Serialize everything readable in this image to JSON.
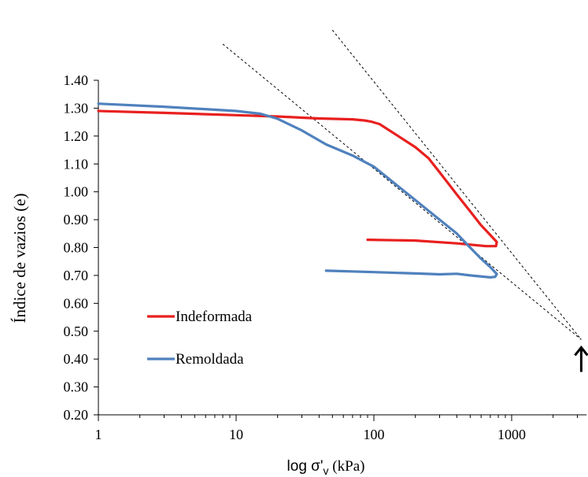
{
  "chart_data": {
    "type": "line",
    "title": "",
    "xlabel": "log σ'v (kPa)",
    "ylabel": "Índice de vazios (e)",
    "x_scale": "log",
    "xlim": [
      1,
      3500
    ],
    "ylim": [
      0.2,
      1.4
    ],
    "x_ticks": [
      1,
      10,
      100,
      1000
    ],
    "x_tick_labels": [
      "1",
      "10",
      "100",
      "1000"
    ],
    "y_ticks": [
      0.2,
      0.3,
      0.4,
      0.5,
      0.6,
      0.7,
      0.8,
      0.9,
      1.0,
      1.1,
      1.2,
      1.3,
      1.4
    ],
    "y_tick_labels": [
      "0.20",
      "0.30",
      "0.40",
      "0.50",
      "0.60",
      "0.70",
      "0.80",
      "0.90",
      "1.00",
      "1.10",
      "1.20",
      "1.30",
      "1.40"
    ],
    "grid": false,
    "legend_position": "lower-left",
    "series": [
      {
        "name": "Indeformada",
        "color": "#e8201f",
        "points": [
          [
            1,
            1.29
          ],
          [
            3,
            1.283
          ],
          [
            10,
            1.275
          ],
          [
            20,
            1.27
          ],
          [
            40,
            1.263
          ],
          [
            70,
            1.26
          ],
          [
            85,
            1.256
          ],
          [
            95,
            1.252
          ],
          [
            110,
            1.243
          ],
          [
            150,
            1.2
          ],
          [
            200,
            1.16
          ],
          [
            250,
            1.12
          ],
          [
            300,
            1.07
          ],
          [
            400,
            0.99
          ],
          [
            500,
            0.93
          ],
          [
            600,
            0.88
          ],
          [
            700,
            0.845
          ],
          [
            780,
            0.82
          ],
          [
            770,
            0.805
          ],
          [
            650,
            0.805
          ],
          [
            400,
            0.815
          ],
          [
            200,
            0.825
          ],
          [
            90,
            0.828
          ]
        ]
      },
      {
        "name": "Remoldada",
        "color": "#4f81bd",
        "points": [
          [
            1,
            1.316
          ],
          [
            3,
            1.305
          ],
          [
            10,
            1.29
          ],
          [
            15,
            1.28
          ],
          [
            20,
            1.262
          ],
          [
            30,
            1.22
          ],
          [
            45,
            1.17
          ],
          [
            70,
            1.13
          ],
          [
            100,
            1.09
          ],
          [
            150,
            1.02
          ],
          [
            200,
            0.97
          ],
          [
            300,
            0.9
          ],
          [
            400,
            0.85
          ],
          [
            500,
            0.8
          ],
          [
            600,
            0.76
          ],
          [
            700,
            0.73
          ],
          [
            780,
            0.705
          ],
          [
            760,
            0.695
          ],
          [
            700,
            0.693
          ],
          [
            500,
            0.7
          ],
          [
            400,
            0.706
          ],
          [
            300,
            0.704
          ],
          [
            200,
            0.707
          ],
          [
            100,
            0.712
          ],
          [
            45,
            0.717
          ]
        ]
      }
    ],
    "reference_lines": [
      {
        "style": "dashed",
        "points": [
          [
            8,
            1.53
          ],
          [
            3200,
            0.47
          ]
        ]
      },
      {
        "style": "dashed",
        "points": [
          [
            50,
            1.58
          ],
          [
            3200,
            0.47
          ]
        ]
      }
    ],
    "annotations": [
      {
        "type": "arrow-up",
        "x": 3200,
        "y": 0.45
      }
    ]
  }
}
